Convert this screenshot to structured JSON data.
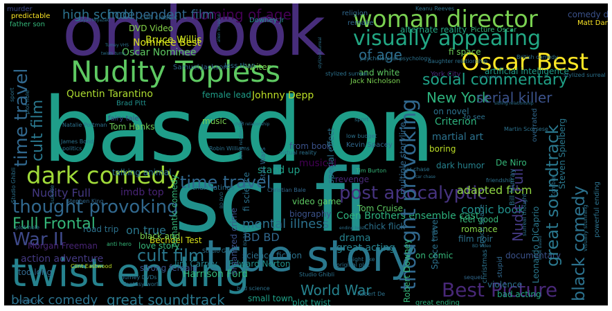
{
  "words": [
    {
      "text": "based on",
      "color": "#1f9e89"
    },
    {
      "text": "sci fi",
      "color": "#21918c"
    },
    {
      "text": "on book",
      "color": "#472d7b"
    },
    {
      "text": "true story",
      "color": "#2a788e"
    },
    {
      "text": "twist ending",
      "color": "#26828e"
    },
    {
      "text": "Nudity Topless",
      "color": "#5ec962"
    },
    {
      "text": "woman director",
      "color": "#7ad151"
    },
    {
      "text": "visually appealing",
      "color": "#22a884"
    },
    {
      "text": "Oscar Best",
      "color": "#fde725"
    },
    {
      "text": "dark comedy",
      "color": "#a0da39"
    },
    {
      "text": "social commentary",
      "color": "#1fa187"
    },
    {
      "text": "thought provoking",
      "color": "#31688e"
    },
    {
      "text": "time travel",
      "color": "#31688e"
    },
    {
      "text": "post apocalyptic",
      "color": "#46337f"
    },
    {
      "text": "Best Picture",
      "color": "#482878"
    },
    {
      "text": "World War",
      "color": "#26828e"
    },
    {
      "text": "great soundtrack",
      "color": "#2a788e"
    },
    {
      "text": "black comedy",
      "color": "#2c728e"
    },
    {
      "text": "coming of age",
      "color": "#440154"
    },
    {
      "text": "of age",
      "color": "#2e6e8e"
    },
    {
      "text": "New York",
      "color": "#2db27d"
    },
    {
      "text": "serial killer",
      "color": "#3b528b"
    },
    {
      "text": "Full Frontal",
      "color": "#35b779"
    },
    {
      "text": "independent film",
      "color": "#31688e"
    },
    {
      "text": "high school",
      "color": "#2c728e"
    },
    {
      "text": "cult film",
      "color": "#2a788e"
    },
    {
      "text": "War II",
      "color": "#3e4989"
    },
    {
      "text": "mental illness",
      "color": "#2c728e"
    },
    {
      "text": "adapted from",
      "color": "#90d743"
    },
    {
      "text": "comic book",
      "color": "#21918c"
    },
    {
      "text": "BD BD",
      "color": "#31688e"
    },
    {
      "text": "on true",
      "color": "#2a788e"
    },
    {
      "text": "Nudity Full",
      "color": "#443983"
    },
    {
      "text": "imdb top",
      "color": "#482475"
    },
    {
      "text": "Quentin Tarantino",
      "color": "#addc30"
    },
    {
      "text": "Johnny Depp",
      "color": "#bddf26"
    },
    {
      "text": "Bruce Willis",
      "color": "#c8e020"
    },
    {
      "text": "Nominee Best",
      "color": "#d8e219"
    },
    {
      "text": "Oscar Nominee",
      "color": "#5ec962"
    },
    {
      "text": "DVD Video",
      "color": "#86d549"
    },
    {
      "text": "alternate reality",
      "color": "#22a884"
    },
    {
      "text": "artificial intelligence",
      "color": "#1f9e89"
    },
    {
      "text": "Writer",
      "color": "#7ad151"
    },
    {
      "text": "and white",
      "color": "#5ec962"
    },
    {
      "text": "fi space",
      "color": "#6ece58"
    },
    {
      "text": "comedy dark",
      "color": "#3b528b"
    },
    {
      "text": "Matt Damon",
      "color": "#fde725"
    },
    {
      "text": "Picture Oscar",
      "color": "#35b779"
    },
    {
      "text": "Coen Brothers ensemble cast",
      "color": "#2db27d"
    },
    {
      "text": "Tom Cruise",
      "color": "#5ec962"
    },
    {
      "text": "drama",
      "color": "#26828e"
    },
    {
      "text": "feel good",
      "color": "#35b779"
    },
    {
      "text": "romance",
      "color": "#86d549"
    },
    {
      "text": "film noir",
      "color": "#2c728e"
    },
    {
      "text": "great acting",
      "color": "#26828e"
    },
    {
      "text": "on comic",
      "color": "#35b779"
    },
    {
      "text": "documentary",
      "color": "#3b528b"
    },
    {
      "text": "bad acting",
      "color": "#22a884"
    },
    {
      "text": "violence",
      "color": "#2c728e"
    },
    {
      "text": "great ending",
      "color": "#2db27d"
    },
    {
      "text": "plot twist",
      "color": "#1f9e89"
    },
    {
      "text": "small town",
      "color": "#1fa187"
    },
    {
      "text": "Harrison Ford",
      "color": "#35b779"
    },
    {
      "text": "strong female",
      "color": "#3b528b"
    },
    {
      "text": "too long",
      "color": "#31688e"
    },
    {
      "text": "action adventure",
      "color": "#443983"
    },
    {
      "text": "Morgan Freeman",
      "color": "#482475"
    },
    {
      "text": "road trip",
      "color": "#2c728e"
    },
    {
      "text": "Bechdel Test",
      "color": "#d8e219"
    },
    {
      "text": "black and",
      "color": "#7ad151"
    },
    {
      "text": "love story",
      "color": "#35b779"
    },
    {
      "text": "science fiction",
      "color": "#2c728e"
    },
    {
      "text": "Edward Norton",
      "color": "#21918c"
    },
    {
      "text": "Jim Carrey",
      "color": "#26828e"
    },
    {
      "text": "stand up",
      "color": "#1fa187"
    },
    {
      "text": "musical",
      "color": "#440154"
    },
    {
      "text": "revenge",
      "color": "#482878"
    },
    {
      "text": "chick flick",
      "color": "#2c728e"
    },
    {
      "text": "video game",
      "color": "#5ec962"
    },
    {
      "text": "biography",
      "color": "#3b528b"
    },
    {
      "text": "Criterion",
      "color": "#2db27d"
    },
    {
      "text": "boring",
      "color": "#bddf26"
    },
    {
      "text": "martial art",
      "color": "#2c728e"
    },
    {
      "text": "dark humor",
      "color": "#26828e"
    },
    {
      "text": "De Niro",
      "color": "#35b779"
    },
    {
      "text": "on novel",
      "color": "#2c728e"
    },
    {
      "text": "to see",
      "color": "#2c728e"
    },
    {
      "text": "Tom Hanks",
      "color": "#6ece58"
    },
    {
      "text": "fairy tale",
      "color": "#3e4989"
    },
    {
      "text": "female lead",
      "color": "#1f9e89"
    },
    {
      "text": "music",
      "color": "#7ad151"
    },
    {
      "text": "from book",
      "color": "#3b528b"
    },
    {
      "text": "talking animal",
      "color": "#2c728e"
    },
    {
      "text": "Brad Pitt",
      "color": "#21918c"
    },
    {
      "text": "Jack Nicholson",
      "color": "#7ad151"
    },
    {
      "text": "York City",
      "color": "#482878"
    },
    {
      "text": "predictable",
      "color": "#fde725"
    },
    {
      "text": "father son",
      "color": "#35b779"
    },
    {
      "text": "Samuel Jackson",
      "color": "#31688e"
    },
    {
      "text": "less than",
      "color": "#2c728e"
    },
    {
      "text": "religion",
      "color": "#31688e"
    },
    {
      "text": "remake",
      "color": "#31688e"
    },
    {
      "text": "murder",
      "color": "#3e4989"
    },
    {
      "text": "Downey Jr",
      "color": "#21918c"
    },
    {
      "text": "cult classic",
      "color": "#2c728e"
    },
    {
      "text": "Topless Brief",
      "color": "#3b528b"
    },
    {
      "text": "up comedy",
      "color": "#26828e"
    },
    {
      "text": "Notable Nudity",
      "color": "#2c728e"
    },
    {
      "text": "Topless Notable",
      "color": "#1fa187"
    },
    {
      "text": "Scarlett Johansson",
      "color": "#2c728e"
    },
    {
      "text": "Test Fail",
      "color": "#35b779"
    },
    {
      "text": "Leonardo DiCaprio",
      "color": "#2a788e"
    },
    {
      "text": "Robert Downey",
      "color": "#35b779"
    },
    {
      "text": "Space travel",
      "color": "#2c728e"
    },
    {
      "text": "Steven Spielberg",
      "color": "#2a788e"
    },
    {
      "text": "organized crime",
      "color": "#3b528b"
    },
    {
      "text": "fi science",
      "color": "#2c728e"
    },
    {
      "text": "romantic comedy",
      "color": "#35b779"
    },
    {
      "text": "special effect",
      "color": "#2c728e"
    },
    {
      "text": "multiple storyline",
      "color": "#31688e"
    },
    {
      "text": "Bill Murray",
      "color": "#2c728e"
    },
    {
      "text": "Al Pacino",
      "color": "#35b779"
    },
    {
      "text": "kidnapping",
      "color": "#31688e"
    },
    {
      "text": "Kevin Spacey",
      "color": "#31688e"
    },
    {
      "text": "Martin Scorsese",
      "color": "#2c728e"
    },
    {
      "text": "Tim Burton",
      "color": "#35b779"
    },
    {
      "text": "Christian Bale",
      "color": "#31688e"
    },
    {
      "text": "Robin Williams",
      "color": "#2c728e"
    },
    {
      "text": "Star Wars",
      "color": "#31688e"
    },
    {
      "text": "Stephen King",
      "color": "#31688e"
    },
    {
      "text": "anti hero",
      "color": "#35b779"
    },
    {
      "text": "Clint Eastwood",
      "color": "#bddf26"
    },
    {
      "text": "bad science",
      "color": "#2c728e"
    },
    {
      "text": "novel or",
      "color": "#31688e"
    },
    {
      "text": "Robert De",
      "color": "#2c728e"
    },
    {
      "text": "overrated",
      "color": "#31688e"
    },
    {
      "text": "sequel",
      "color": "#31688e"
    },
    {
      "text": "stupid",
      "color": "#31688e"
    },
    {
      "text": "space space",
      "color": "#2c728e"
    },
    {
      "text": "christmas",
      "color": "#2c728e"
    },
    {
      "text": "Test Pass",
      "color": "#2c728e"
    },
    {
      "text": "time loop",
      "color": "#31688e"
    },
    {
      "text": "than ratings",
      "color": "#2c728e"
    },
    {
      "text": "Natalie Portman",
      "color": "#2c728e"
    },
    {
      "text": "James Bond",
      "color": "#2c728e"
    },
    {
      "text": "politics",
      "color": "#2c728e"
    },
    {
      "text": "suicide",
      "color": "#2c728e"
    },
    {
      "text": "plot hole",
      "color": "#2c728e"
    },
    {
      "text": "Studio Ghibli",
      "color": "#2c728e"
    },
    {
      "text": "comedy funny",
      "color": "#2c728e"
    },
    {
      "text": "original plot",
      "color": "#2c728e"
    },
    {
      "text": "Tumey DVDs",
      "color": "#2c728e"
    },
    {
      "text": "Fantasy world",
      "color": "#2c728e"
    },
    {
      "text": "car chase",
      "color": "#2c728e"
    },
    {
      "text": "British comedy",
      "color": "#2c728e"
    },
    {
      "text": "stylized surreal",
      "color": "#2c728e"
    },
    {
      "text": "friendship",
      "color": "#2c728e"
    },
    {
      "text": "sport",
      "color": "#2c728e"
    },
    {
      "text": "low budget",
      "color": "#2c728e"
    },
    {
      "text": "virtual reality",
      "color": "#2c728e"
    },
    {
      "text": "Los Angeles",
      "color": "#2c728e"
    },
    {
      "text": "visually stunning",
      "color": "#2c728e"
    },
    {
      "text": "powerful ending",
      "color": "#2c728e"
    },
    {
      "text": "Zombie",
      "color": "#2c728e"
    },
    {
      "text": "BD Video",
      "color": "#2c728e"
    },
    {
      "text": "might like",
      "color": "#2c728e"
    },
    {
      "text": "surreal thought",
      "color": "#2c728e"
    },
    {
      "text": "on play",
      "color": "#2c728e"
    },
    {
      "text": "alien invasion",
      "color": "#2c728e"
    },
    {
      "text": "parent child",
      "color": "#2c728e"
    },
    {
      "text": "psychological psychology",
      "color": "#2c728e"
    },
    {
      "text": "daughter relationship",
      "color": "#2c728e"
    },
    {
      "text": "sibling relationship",
      "color": "#2c728e"
    },
    {
      "text": "Keanu Reeves",
      "color": "#2c728e"
    },
    {
      "text": "book based",
      "color": "#2c728e"
    },
    {
      "text": "ending twist",
      "color": "#2c728e"
    },
    {
      "text": "child relationship",
      "color": "#2c728e"
    },
    {
      "text": "BD DVD",
      "color": "#2c728e"
    },
    {
      "text": "BD RAM",
      "color": "#2c728e"
    },
    {
      "text": "ratings less",
      "color": "#2c728e"
    },
    {
      "text": "twists turns",
      "color": "#2c728e"
    },
    {
      "text": "Tumey VHS",
      "color": "#2c728e"
    },
    {
      "text": "seen more",
      "color": "#2c728e"
    },
    {
      "text": "Hayao Miyazaki",
      "color": "#2c728e"
    }
  ]
}
